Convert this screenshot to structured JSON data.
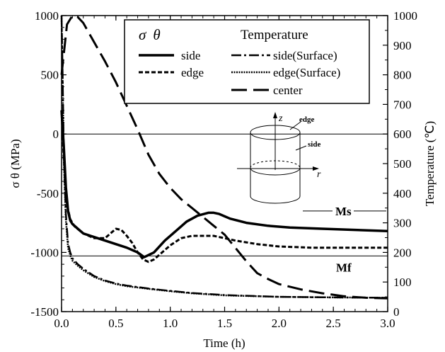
{
  "chart_data": {
    "type": "line",
    "xlabel": "Time (h)",
    "ylabel": "σ θ  (MPa)",
    "y2label": "Temperature  (℃)",
    "xlim": [
      0,
      3
    ],
    "ylim": [
      -1500,
      1000
    ],
    "y2lim": [
      0,
      1000
    ],
    "x_ticks": [
      "0.0",
      "0.5",
      "1.0",
      "1.5",
      "2.0",
      "2.5",
      "3.0"
    ],
    "y_ticks": [
      "1000",
      "500",
      "0",
      "-500",
      "-1000",
      "-1500"
    ],
    "y2_ticks": [
      "1000",
      "900",
      "800",
      "700",
      "600",
      "500",
      "400",
      "300",
      "200",
      "100",
      "0"
    ],
    "grid": false,
    "legend": {
      "placement": "top-right",
      "stress_heading_symbol": "σ",
      "stress_heading_subscript": "θ",
      "temperature_heading": "Temperature"
    },
    "series": [
      {
        "name": "side",
        "axis": "left",
        "style": "solid",
        "x": [
          0.0,
          0.02,
          0.04,
          0.06,
          0.08,
          0.1,
          0.15,
          0.2,
          0.3,
          0.4,
          0.5,
          0.6,
          0.7,
          0.76,
          0.85,
          0.95,
          1.05,
          1.15,
          1.25,
          1.35,
          1.4,
          1.45,
          1.55,
          1.7,
          1.9,
          2.1,
          2.4,
          2.7,
          3.0
        ],
        "y": [
          200,
          -100,
          -450,
          -650,
          -730,
          -760,
          -800,
          -840,
          -870,
          -900,
          -930,
          -960,
          -1000,
          -1040,
          -1000,
          -900,
          -820,
          -740,
          -690,
          -665,
          -665,
          -675,
          -715,
          -750,
          -775,
          -790,
          -800,
          -810,
          -820
        ]
      },
      {
        "name": "edge",
        "axis": "left",
        "style": "dashed",
        "x": [
          0.0,
          0.02,
          0.05,
          0.08,
          0.12,
          0.2,
          0.3,
          0.4,
          0.45,
          0.5,
          0.55,
          0.6,
          0.65,
          0.7,
          0.75,
          0.8,
          0.85,
          0.9,
          1.0,
          1.1,
          1.2,
          1.3,
          1.4,
          1.5,
          1.6,
          1.8,
          2.0,
          2.3,
          2.6,
          3.0
        ],
        "y": [
          200,
          -200,
          -600,
          -720,
          -780,
          -840,
          -880,
          -880,
          -840,
          -800,
          -810,
          -860,
          -920,
          -1000,
          -1060,
          -1080,
          -1060,
          -1020,
          -940,
          -880,
          -860,
          -860,
          -860,
          -880,
          -900,
          -930,
          -950,
          -960,
          -960,
          -960
        ]
      },
      {
        "name": "side(Surface)",
        "axis": "right",
        "style": "dash-dot",
        "x": [
          0.0,
          0.01,
          0.02,
          0.04,
          0.06,
          0.08,
          0.1,
          0.15,
          0.2,
          0.3,
          0.4,
          0.5,
          0.6,
          0.8,
          1.0,
          1.2,
          1.5,
          2.0,
          2.5,
          3.0
        ],
        "y": [
          1000,
          800,
          550,
          330,
          230,
          200,
          180,
          160,
          145,
          120,
          105,
          95,
          88,
          78,
          70,
          63,
          56,
          50,
          48,
          47
        ]
      },
      {
        "name": "edge(Surface)",
        "axis": "right",
        "style": "dotted",
        "x": [
          0.0,
          0.01,
          0.02,
          0.04,
          0.06,
          0.08,
          0.1,
          0.15,
          0.2,
          0.3,
          0.4,
          0.5,
          0.6,
          0.8,
          1.0,
          1.2,
          1.5,
          2.0,
          2.5,
          3.0
        ],
        "y": [
          1000,
          780,
          520,
          310,
          215,
          190,
          172,
          155,
          140,
          117,
          103,
          93,
          86,
          77,
          69,
          62,
          55,
          50,
          48,
          47
        ]
      },
      {
        "name": "center",
        "axis": "right",
        "style": "long-dash",
        "x": [
          0.0,
          0.05,
          0.1,
          0.15,
          0.2,
          0.3,
          0.4,
          0.5,
          0.6,
          0.7,
          0.8,
          0.9,
          1.0,
          1.1,
          1.2,
          1.3,
          1.4,
          1.5,
          1.6,
          1.7,
          1.8,
          1.9,
          2.0,
          2.2,
          2.4,
          2.6,
          2.8,
          3.0
        ],
        "y": [
          800,
          970,
          1000,
          995,
          975,
          910,
          845,
          775,
          695,
          615,
          530,
          465,
          418,
          380,
          350,
          320,
          290,
          260,
          215,
          170,
          130,
          110,
          93,
          75,
          62,
          52,
          47,
          45
        ]
      }
    ],
    "reference_lines": [
      {
        "axis": "left",
        "y": 0
      },
      {
        "axis": "left",
        "y": -1030
      }
    ],
    "annotations": {
      "ms_label": "Ms",
      "mf_label": "Mf",
      "ms_level_temperature": 340,
      "mf_level_temperature": 188,
      "cylinder_z": "z",
      "cylinder_r": "r",
      "cylinder_edge": "edge",
      "cylinder_side": "side"
    }
  }
}
